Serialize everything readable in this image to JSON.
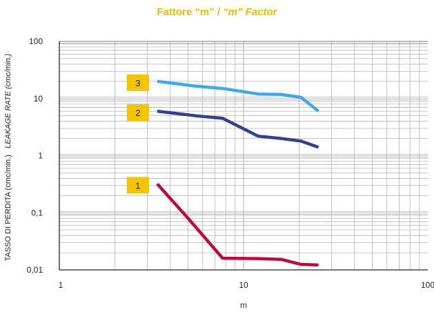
{
  "chart_data": {
    "type": "line",
    "title_main": "Fattore “m” / ",
    "title_italic": "“m” Factor",
    "title_color": "#f5b800",
    "xlabel": "m",
    "ylabel_main": "TASSO DI PERDITA (cmc/min.)",
    "ylabel_italic": "LEAKAGE RATE (cmc/min.)",
    "x_scale": "log",
    "y_scale": "log",
    "xlim": [
      1,
      100
    ],
    "ylim": [
      0.01,
      100
    ],
    "x_tick_labels": [
      "1",
      "10",
      "100"
    ],
    "x_ticks": [
      1,
      10,
      100
    ],
    "y_tick_labels": [
      "100",
      "10",
      "1",
      "0,1",
      "0,01"
    ],
    "y_ticks": [
      100,
      10,
      1,
      0.1,
      0.01
    ],
    "grid": true,
    "badge_color": "#f5c400",
    "series": [
      {
        "name": "1",
        "color": "#c00a36",
        "x": [
          3.4,
          5.0,
          7.7,
          12.0,
          16.0,
          20.5,
          25.5
        ],
        "y": [
          0.32,
          0.08,
          0.016,
          0.0158,
          0.0153,
          0.0125,
          0.0122
        ]
      },
      {
        "name": "2",
        "color": "#33408e",
        "x": [
          3.4,
          5.5,
          7.7,
          12.0,
          16.0,
          20.5,
          25.5
        ],
        "y": [
          6.0,
          5.0,
          4.5,
          2.2,
          2.0,
          1.8,
          1.4
        ]
      },
      {
        "name": "3",
        "color": "#3fa9e3",
        "x": [
          3.4,
          5.5,
          7.7,
          12.0,
          16.0,
          20.5,
          25.5
        ],
        "y": [
          20.0,
          16.5,
          15.0,
          12.0,
          11.8,
          10.5,
          6.0
        ]
      }
    ]
  }
}
